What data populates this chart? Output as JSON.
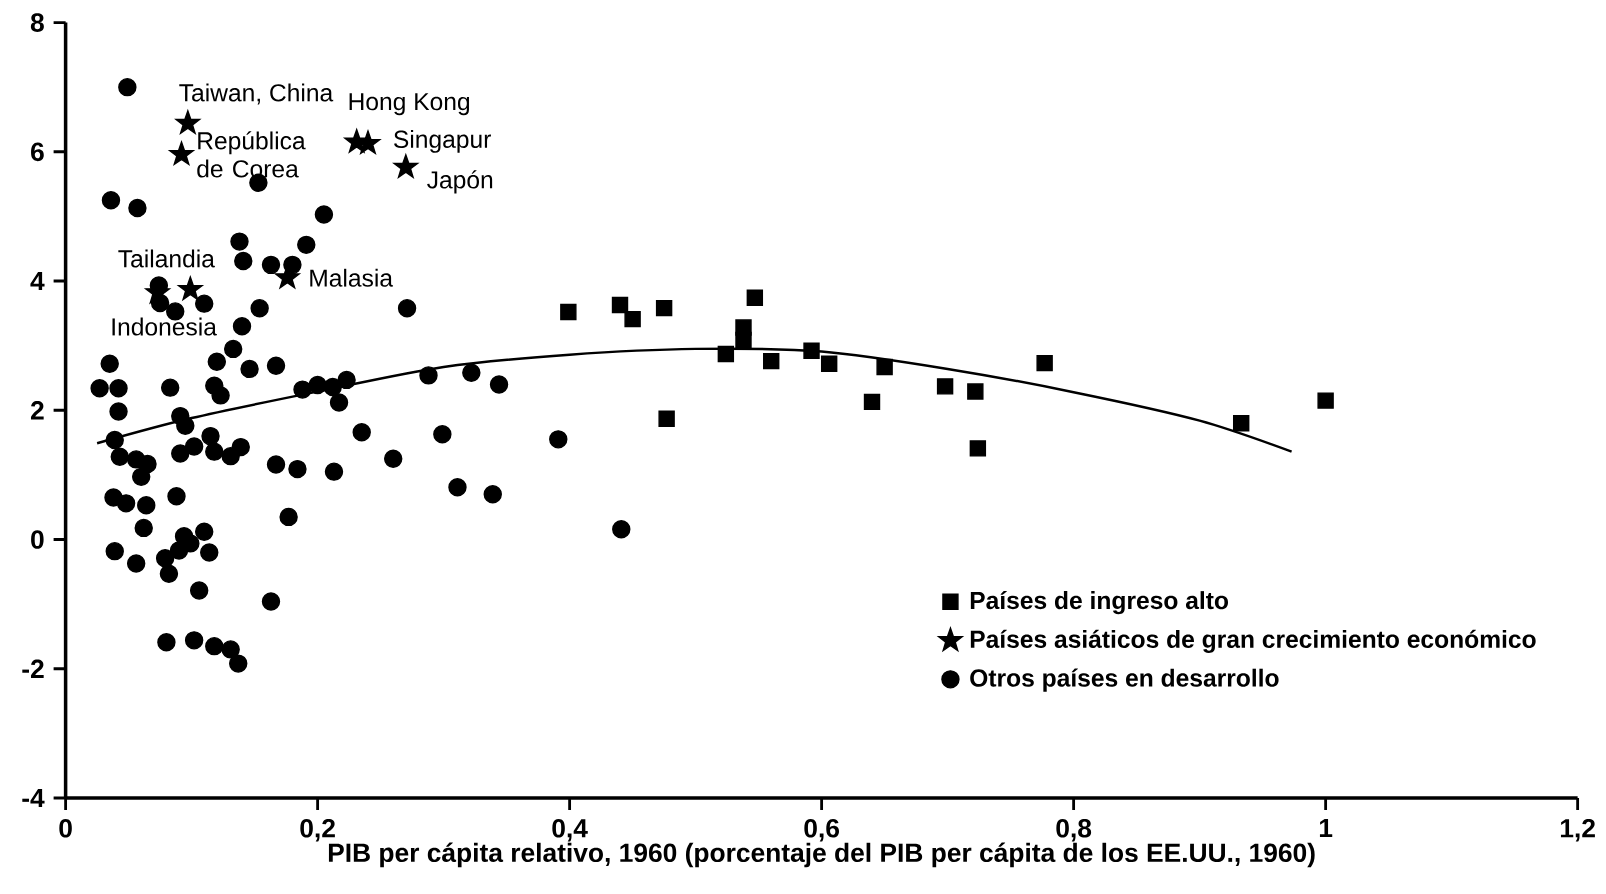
{
  "chart_data": {
    "type": "scatter",
    "xlabel": "PIB per cápita relativo, 1960 (porcentaje del PIB per cápita de los EE.UU., 1960)",
    "xlim": [
      0,
      1.2
    ],
    "ylim": [
      -4,
      8
    ],
    "xticks": [
      {
        "value": 0,
        "label": "0"
      },
      {
        "value": 0.2,
        "label": "0,2"
      },
      {
        "value": 0.4,
        "label": "0,4"
      },
      {
        "value": 0.6,
        "label": "0,6"
      },
      {
        "value": 0.8,
        "label": "0,8"
      },
      {
        "value": 1,
        "label": "1"
      },
      {
        "value": 1.2,
        "label": "1,2"
      }
    ],
    "yticks": [
      -4,
      -2,
      0,
      2,
      4,
      6,
      8
    ],
    "legend": "bottom right",
    "series": [
      {
        "name": "Países de ingreso alto",
        "marker": "square",
        "color": "#000000",
        "x": [
          0.399,
          0.44,
          0.45,
          0.475,
          0.477,
          0.524,
          0.538,
          0.538,
          0.547,
          0.56,
          0.592,
          0.606,
          0.64,
          0.65,
          0.698,
          0.722,
          0.724,
          0.777,
          0.933,
          1.0
        ],
        "values": [
          3.52,
          3.63,
          3.41,
          3.58,
          1.87,
          2.87,
          3.28,
          3.09,
          3.74,
          2.76,
          2.92,
          2.72,
          2.13,
          2.67,
          2.37,
          2.29,
          1.41,
          2.73,
          1.8,
          2.15
        ]
      },
      {
        "name": "Países asiáticos de gran crecimiento económico",
        "marker": "star",
        "color": "#000000",
        "x": [
          0.097,
          0.092,
          0.231,
          0.24,
          0.27,
          0.099,
          0.073,
          0.176
        ],
        "values": [
          6.44,
          5.96,
          6.15,
          6.13,
          5.76,
          3.87,
          3.82,
          4.05
        ]
      },
      {
        "name": "Otros países en desarrollo",
        "marker": "circle",
        "color": "#000000",
        "x": [
          0.049,
          0.036,
          0.057,
          0.153,
          0.205,
          0.138,
          0.141,
          0.191,
          0.163,
          0.18,
          0.074,
          0.075,
          0.087,
          0.11,
          0.154,
          0.271,
          0.14,
          0.133,
          0.12,
          0.146,
          0.167,
          0.035,
          0.027,
          0.042,
          0.083,
          0.118,
          0.123,
          0.042,
          0.091,
          0.095,
          0.039,
          0.102,
          0.115,
          0.118,
          0.091,
          0.131,
          0.139,
          0.043,
          0.056,
          0.065,
          0.06,
          0.167,
          0.184,
          0.213,
          0.26,
          0.235,
          0.299,
          0.188,
          0.2,
          0.212,
          0.223,
          0.217,
          0.288,
          0.322,
          0.344,
          0.177,
          0.311,
          0.339,
          0.391,
          0.441,
          0.038,
          0.048,
          0.064,
          0.088,
          0.062,
          0.039,
          0.056,
          0.079,
          0.082,
          0.09,
          0.094,
          0.099,
          0.11,
          0.114,
          0.106,
          0.163,
          0.08,
          0.102,
          0.118,
          0.131,
          0.137
        ],
        "values": [
          7.0,
          5.25,
          5.13,
          5.52,
          5.03,
          4.61,
          4.31,
          4.56,
          4.25,
          4.25,
          3.93,
          3.66,
          3.53,
          3.65,
          3.58,
          3.58,
          3.3,
          2.95,
          2.75,
          2.64,
          2.69,
          2.72,
          2.34,
          2.34,
          2.35,
          2.38,
          2.23,
          1.98,
          1.91,
          1.76,
          1.54,
          1.44,
          1.6,
          1.36,
          1.33,
          1.29,
          1.43,
          1.28,
          1.24,
          1.17,
          0.97,
          1.16,
          1.09,
          1.05,
          1.25,
          1.66,
          1.63,
          2.32,
          2.39,
          2.36,
          2.47,
          2.12,
          2.54,
          2.58,
          2.4,
          0.35,
          0.81,
          0.7,
          1.55,
          0.16,
          0.65,
          0.56,
          0.53,
          0.67,
          0.18,
          -0.18,
          -0.37,
          -0.29,
          -0.53,
          -0.17,
          0.05,
          -0.06,
          0.12,
          -0.2,
          -0.79,
          -0.96,
          -1.59,
          -1.56,
          -1.65,
          -1.7,
          -1.92
        ]
      },
      {
        "type": "line",
        "marker": "none",
        "color": "#000000",
        "x": [
          0.025,
          0.1,
          0.2,
          0.3,
          0.4,
          0.5,
          0.6,
          0.7,
          0.8,
          0.9,
          0.973
        ],
        "values": [
          1.49,
          1.88,
          2.29,
          2.67,
          2.86,
          2.95,
          2.91,
          2.64,
          2.28,
          1.84,
          1.36
        ]
      }
    ],
    "annotations": [
      {
        "text": "Taiwan, China",
        "x": 0.097,
        "y": 6.44
      },
      {
        "text": "República de Corea",
        "x": 0.092,
        "y": 5.96
      },
      {
        "text": "Hong Kong",
        "x": 0.231,
        "y": 6.15
      },
      {
        "text": "Singapur",
        "x": 0.24,
        "y": 6.13
      },
      {
        "text": "Japón",
        "x": 0.27,
        "y": 5.76
      },
      {
        "text": "Tailandia",
        "x": 0.099,
        "y": 3.87
      },
      {
        "text": "Indonesia",
        "x": 0.073,
        "y": 3.82
      },
      {
        "text": "Malasia",
        "x": 0.176,
        "y": 4.05
      }
    ]
  }
}
